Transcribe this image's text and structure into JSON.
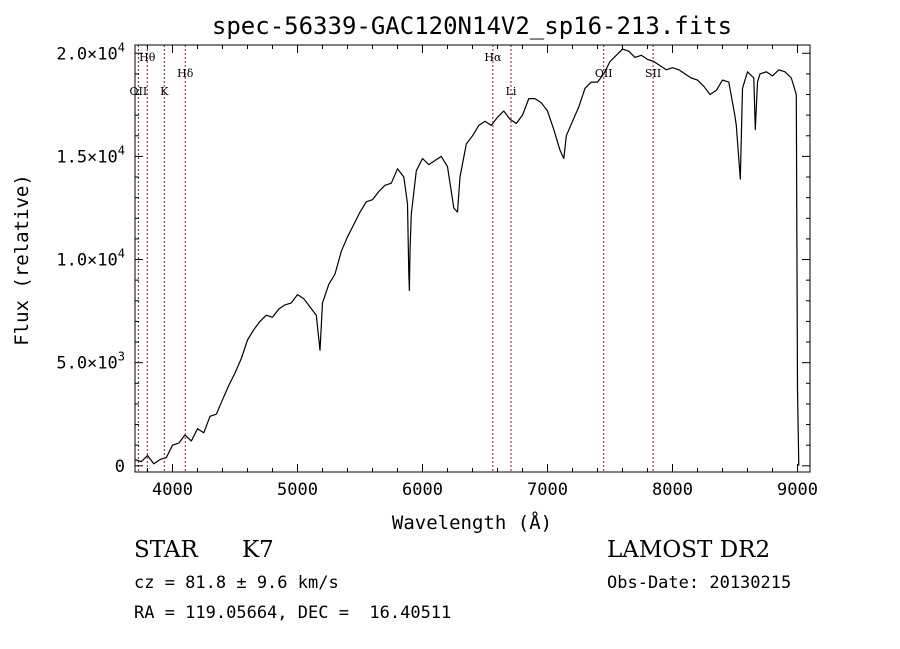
{
  "chart_data": {
    "type": "line",
    "title": "spec-56339-GAC120N14V2_sp16-213.fits",
    "xlabel": "Wavelength (Å)",
    "ylabel": "Flux (relative)",
    "xlim": [
      3700,
      9100
    ],
    "ylim": [
      -300,
      20400
    ],
    "x_ticks": [
      4000,
      5000,
      6000,
      7000,
      8000,
      9000
    ],
    "x_tick_labels": [
      "4000",
      "5000",
      "6000",
      "7000",
      "8000",
      "9000"
    ],
    "y_ticks": [
      0,
      5000,
      10000,
      15000,
      20000
    ],
    "y_tick_labels": [
      {
        "base": "0",
        "exp": ""
      },
      {
        "base": "5.0×10",
        "exp": "3"
      },
      {
        "base": "1.0×10",
        "exp": "4"
      },
      {
        "base": "1.5×10",
        "exp": "4"
      },
      {
        "base": "2.0×10",
        "exp": "4"
      }
    ],
    "grid": false,
    "line_color": "#000000",
    "marker_color": "#8b1a1a",
    "spectral_lines": [
      {
        "label": "Hθ",
        "x": 3798,
        "row": 1
      },
      {
        "label": "OII",
        "x": 3727,
        "row": 2
      },
      {
        "label": "K",
        "x": 3934,
        "row": 2
      },
      {
        "label": "Hδ",
        "x": 4102,
        "row": 1.5
      },
      {
        "label": "Hα",
        "x": 6563,
        "row": 1
      },
      {
        "label": "Li",
        "x": 6708,
        "row": 2
      },
      {
        "label": "OII",
        "x": 7450,
        "row": 1.5
      },
      {
        "label": "SII",
        "x": 7845,
        "row": 1.5
      }
    ],
    "series": [
      {
        "x": [
          3700,
          3750,
          3800,
          3850,
          3900,
          3950,
          4000,
          4050,
          4100,
          4150,
          4200,
          4250,
          4300,
          4350,
          4400,
          4450,
          4500,
          4550,
          4600,
          4650,
          4700,
          4750,
          4800,
          4850,
          4900,
          4950,
          5000,
          5050,
          5100,
          5150,
          5180,
          5200,
          5250,
          5300,
          5350,
          5400,
          5450,
          5500,
          5550,
          5600,
          5650,
          5700,
          5750,
          5800,
          5850,
          5880,
          5890,
          5895,
          5900,
          5910,
          5950,
          6000,
          6050,
          6100,
          6150,
          6200,
          6250,
          6280,
          6300,
          6350,
          6400,
          6450,
          6500,
          6550,
          6600,
          6650,
          6700,
          6750,
          6800,
          6850,
          6900,
          6950,
          7000,
          7050,
          7100,
          7130,
          7150,
          7200,
          7250,
          7300,
          7350,
          7400,
          7450,
          7500,
          7550,
          7600,
          7650,
          7700,
          7750,
          7800,
          7850,
          7900,
          7950,
          8000,
          8050,
          8100,
          8150,
          8200,
          8250,
          8300,
          8350,
          8400,
          8450,
          8498,
          8510,
          8542,
          8560,
          8600,
          8650,
          8662,
          8680,
          8700,
          8750,
          8800,
          8850,
          8900,
          8950,
          8990,
          9000,
          9010
        ],
        "y": [
          300,
          200,
          500,
          100,
          300,
          400,
          1000,
          1100,
          1500,
          1200,
          1800,
          1600,
          2400,
          2500,
          3200,
          3900,
          4500,
          5200,
          6100,
          6600,
          7000,
          7300,
          7200,
          7600,
          7800,
          7900,
          8300,
          8100,
          7700,
          7300,
          5600,
          7900,
          8800,
          9300,
          10400,
          11100,
          11700,
          12300,
          12800,
          12900,
          13300,
          13600,
          13700,
          14400,
          14000,
          12700,
          9300,
          8500,
          10400,
          12200,
          14300,
          14900,
          14600,
          14800,
          15000,
          14500,
          12500,
          12300,
          14000,
          15600,
          16000,
          16500,
          16700,
          16500,
          16900,
          17200,
          16800,
          16600,
          17000,
          17800,
          17800,
          17600,
          17200,
          16300,
          15300,
          14900,
          16000,
          16700,
          17400,
          18300,
          18600,
          18600,
          19000,
          19600,
          19900,
          20200,
          20100,
          19800,
          19900,
          19700,
          19600,
          19400,
          19200,
          19300,
          19200,
          19000,
          18800,
          18700,
          18400,
          18000,
          18200,
          18700,
          18600,
          17000,
          16500,
          13900,
          18300,
          19100,
          18800,
          16300,
          18600,
          19000,
          19100,
          18900,
          19200,
          19100,
          18800,
          18000,
          3700,
          0
        ]
      }
    ]
  },
  "footer": {
    "object_class": "STAR",
    "subclass": "K7",
    "redshift": "cz = 81.8 ± 9.6 km/s",
    "coords": "RA = 119.05664, DEC =  16.40511",
    "survey": "LAMOST DR2",
    "obs_date": "Obs-Date: 20130215"
  }
}
